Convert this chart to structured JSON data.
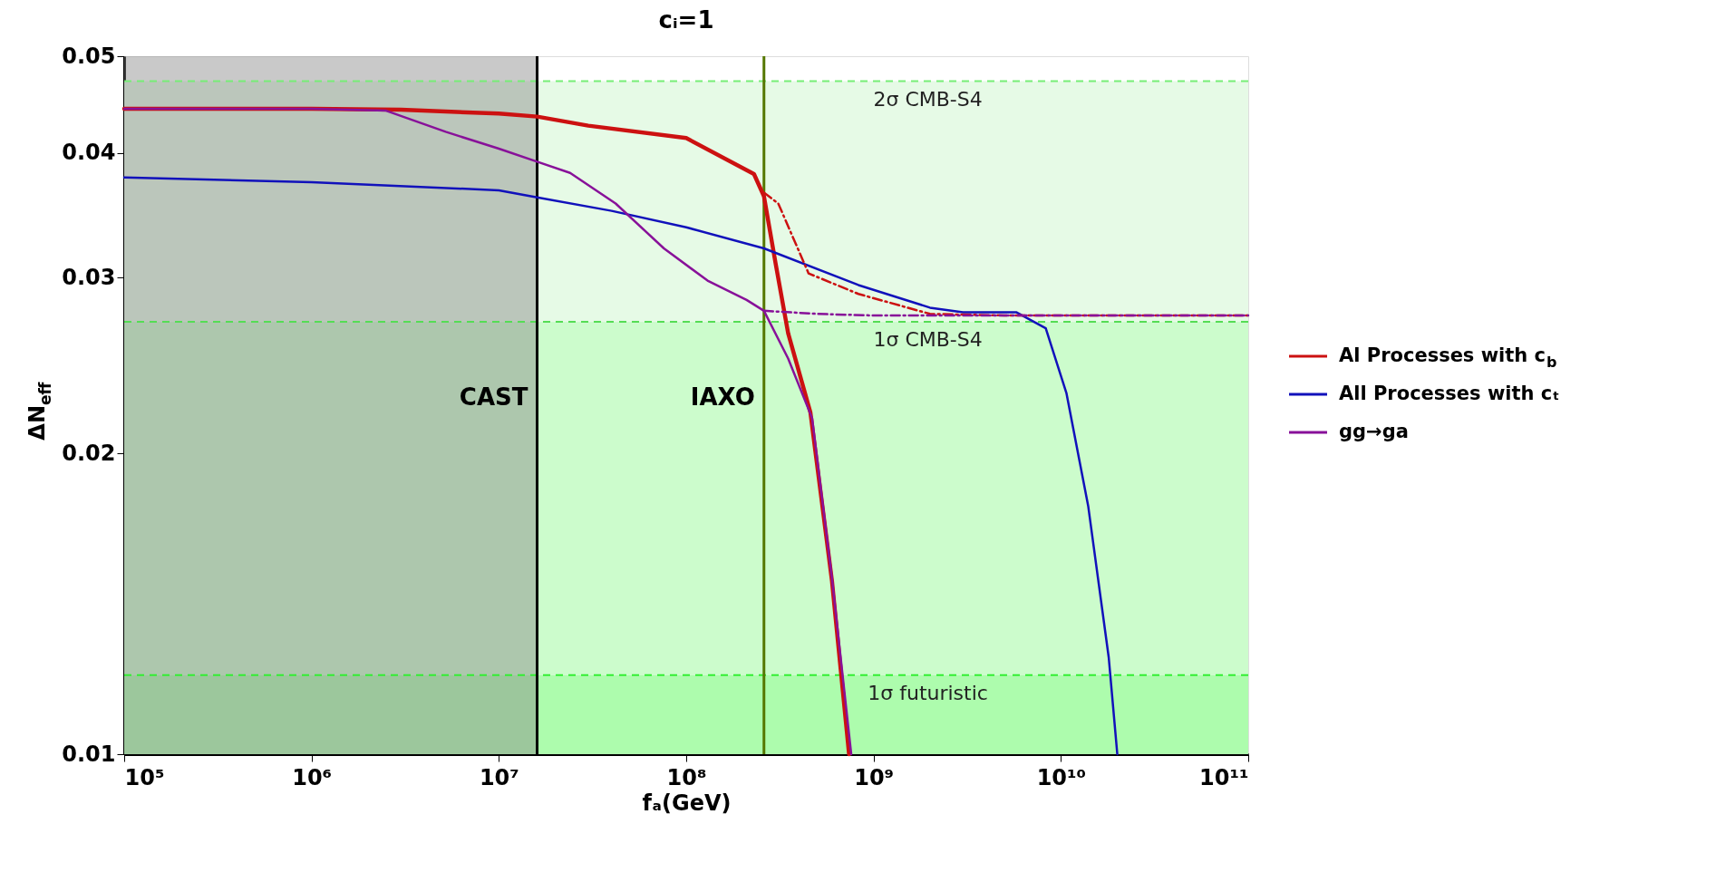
{
  "chart_data": {
    "type": "line",
    "title": "cᵢ=1",
    "xlabel": "fₐ(GeV)",
    "ylabel": "ΔN$_{eff}$",
    "log": "xy",
    "grid": false,
    "legend": "right",
    "xlim": [
      100000,
      100000000000
    ],
    "ylim": [
      0.01,
      0.05
    ],
    "xticks": [
      {
        "value": 100000,
        "label": "10⁵"
      },
      {
        "value": 1000000,
        "label": "10⁶"
      },
      {
        "value": 10000000,
        "label": "10⁷"
      },
      {
        "value": 100000000,
        "label": "10⁸"
      },
      {
        "value": 1000000000,
        "label": "10⁹"
      },
      {
        "value": 10000000000,
        "label": "10¹⁰"
      },
      {
        "value": 100000000000,
        "label": "10¹¹"
      }
    ],
    "yticks": [
      0.01,
      0.02,
      0.03,
      0.04,
      0.05
    ],
    "bands": [
      {
        "axis": "y",
        "from": 0.0271,
        "to": 0.0472,
        "color": "#e6fae6"
      },
      {
        "axis": "y",
        "from": 0.012,
        "to": 0.0271,
        "color": "#ccfccc"
      },
      {
        "axis": "y",
        "from": 0.01,
        "to": 0.012,
        "color": "#adfcad"
      },
      {
        "axis": "x",
        "from": 100000,
        "to": 16000000,
        "color": "#888888"
      }
    ],
    "ref_lines": [
      {
        "axis": "y",
        "value": 0.0472,
        "label": "2σ CMB-S4",
        "color": "#77ee77",
        "line_style": "dashed"
      },
      {
        "axis": "y",
        "value": 0.0271,
        "label": "1σ CMB-S4",
        "color": "#55dd55",
        "line_style": "dashed"
      },
      {
        "axis": "y",
        "value": 0.012,
        "label": "1σ futuristic",
        "color": "#33ee33",
        "line_style": "dashed"
      },
      {
        "axis": "x",
        "value": 16000000,
        "label": "CAST",
        "color": "#000000",
        "line_style": "solid"
      },
      {
        "axis": "x",
        "value": 260000000,
        "label": "IAXO",
        "color": "#557700",
        "line_style": "solid"
      }
    ],
    "series": [
      {
        "name": "Al Processes with c$_{b}$",
        "color": "#cc1111",
        "line_style": "solid",
        "x": [
          100000,
          1000000,
          3000000,
          10000000,
          16000000,
          30000000,
          100000000,
          230000000,
          260000000,
          300000000,
          350000000,
          460000000,
          600000000,
          740000000
        ],
        "values": [
          0.0443,
          0.0443,
          0.0442,
          0.0438,
          0.0435,
          0.0426,
          0.0414,
          0.0381,
          0.0362,
          0.031,
          0.0264,
          0.022,
          0.0149,
          0.01
        ]
      },
      {
        "name": "All Processes with cₜ",
        "color": "#1111bb",
        "line_style": "solid",
        "x": [
          100000,
          1000000,
          10000000,
          16000000,
          40000000,
          100000000,
          260000000,
          830000000,
          2000000000,
          3000000000,
          5800000000,
          8300000000,
          10700000000,
          14000000000,
          18000000000,
          20000000000
        ],
        "values": [
          0.0378,
          0.0374,
          0.0367,
          0.0361,
          0.035,
          0.0337,
          0.0321,
          0.0295,
          0.028,
          0.0277,
          0.0277,
          0.0267,
          0.023,
          0.0177,
          0.0125,
          0.01
        ]
      },
      {
        "name": "gg→ga",
        "color": "#881199",
        "line_style": "solid",
        "x": [
          100000,
          1000000,
          2500000,
          5200000,
          10000000,
          16000000,
          24000000,
          42000000,
          76000000,
          130000000,
          210000000,
          260000000,
          350000000,
          470000000,
          600000000,
          760000000
        ],
        "values": [
          0.0443,
          0.0443,
          0.0441,
          0.042,
          0.0404,
          0.0392,
          0.0382,
          0.0356,
          0.0321,
          0.0298,
          0.0285,
          0.0278,
          0.0249,
          0.0217,
          0.015,
          0.01
        ]
      },
      {
        "color": "#cc1111",
        "line_style": "dashed",
        "x": [
          260000000,
          310000000,
          450000000,
          830000000,
          2000000000,
          5000000000,
          100000000000
        ],
        "values": [
          0.0365,
          0.0356,
          0.0303,
          0.0289,
          0.0276,
          0.0275,
          0.0275
        ]
      },
      {
        "color": "#881199",
        "line_style": "dashed",
        "x": [
          260000000,
          500000000,
          1000000000,
          100000000000
        ],
        "values": [
          0.0278,
          0.0276,
          0.0275,
          0.0275
        ]
      }
    ]
  }
}
